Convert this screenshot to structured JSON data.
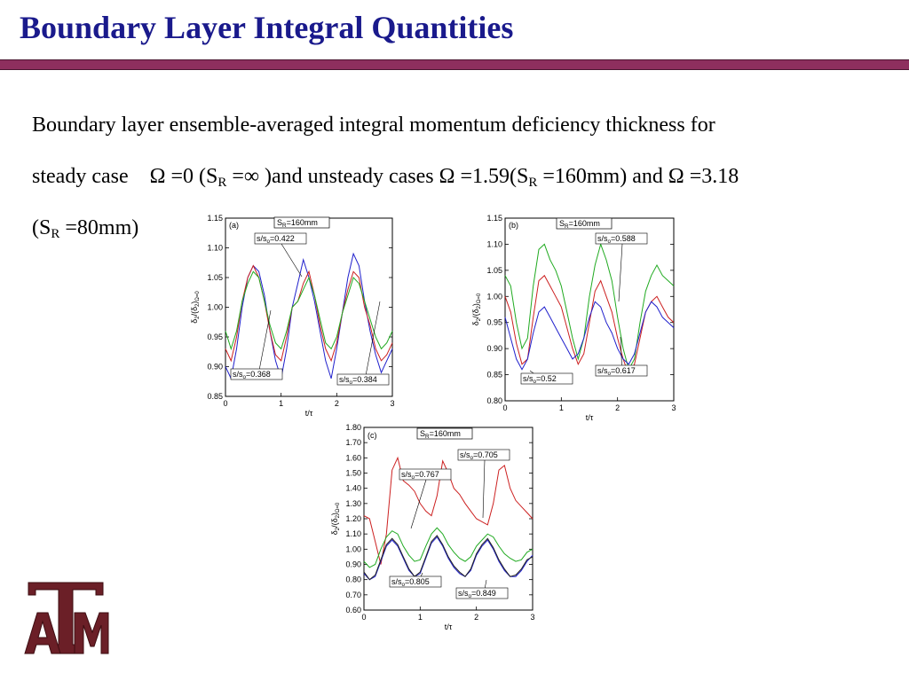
{
  "slide": {
    "title": "Boundary Layer Integral Quantities",
    "body": {
      "line1": "Boundary layer ensemble-averaged integral momentum deficiency thickness for",
      "line2a": "steady case",
      "omega": "Ω",
      "eq0": " =0 (S",
      "sub_R": "R",
      "eqinf": " =∞ )and unsteady cases ",
      "eq159": " =1.59(S",
      "eq160": " =160mm) and ",
      "eq318": " =3.18",
      "line3a": "(S",
      "eq80": " =80mm)"
    }
  },
  "chart_data": [
    {
      "type": "line",
      "panel_label": "(a)",
      "legend_box": "S_R=160mm",
      "legend_box_parts": {
        "main": "S",
        "sub": "R",
        "rest": "=160mm"
      },
      "xlabel": "t/τ",
      "ylabel_parts": {
        "a": "δ",
        "b": "2",
        "c": "/(δ",
        "d": "2",
        "e": ")",
        "f": "Ω=0"
      },
      "xlim": [
        0,
        3
      ],
      "ylim": [
        0.85,
        1.15
      ],
      "xticks": [
        0,
        1,
        2,
        3
      ],
      "yticks": [
        0.85,
        0.9,
        0.95,
        1.0,
        1.05,
        1.1,
        1.15
      ],
      "ytick_labels": [
        "0.85",
        "0.90",
        "0.95",
        "1.00",
        "1.05",
        "1.10",
        "1.15"
      ],
      "annotations": [
        {
          "text_main": "s/s",
          "text_sub": "o",
          "text_rest": "=0.422"
        },
        {
          "text_main": "s/s",
          "text_sub": "o",
          "text_rest": "=0.368"
        },
        {
          "text_main": "s/s",
          "text_sub": "o",
          "text_rest": "=0.384"
        }
      ],
      "series": [
        {
          "color": "#2020cc",
          "x": [
            0,
            0.1,
            0.2,
            0.3,
            0.4,
            0.5,
            0.6,
            0.7,
            0.8,
            0.9,
            1.0,
            1.1,
            1.2,
            1.3,
            1.4,
            1.5,
            1.6,
            1.7,
            1.8,
            1.9,
            2.0,
            2.1,
            2.2,
            2.3,
            2.4,
            2.5,
            2.6,
            2.7,
            2.8,
            2.9,
            3.0
          ],
          "y": [
            0.9,
            0.88,
            0.93,
            1.0,
            1.05,
            1.07,
            1.06,
            1.02,
            0.96,
            0.91,
            0.88,
            0.93,
            1.0,
            1.04,
            1.08,
            1.05,
            1.01,
            0.96,
            0.91,
            0.88,
            0.93,
            0.99,
            1.05,
            1.09,
            1.07,
            1.01,
            0.96,
            0.92,
            0.89,
            0.91,
            0.93
          ]
        },
        {
          "color": "#cc2020",
          "x": [
            0,
            0.1,
            0.2,
            0.3,
            0.4,
            0.5,
            0.6,
            0.7,
            0.8,
            0.9,
            1.0,
            1.1,
            1.2,
            1.3,
            1.4,
            1.5,
            1.6,
            1.7,
            1.8,
            1.9,
            2.0,
            2.1,
            2.2,
            2.3,
            2.4,
            2.5,
            2.6,
            2.7,
            2.8,
            2.9,
            3.0
          ],
          "y": [
            0.93,
            0.91,
            0.95,
            1.01,
            1.05,
            1.07,
            1.05,
            1.01,
            0.96,
            0.92,
            0.91,
            0.95,
            1.0,
            1.01,
            1.04,
            1.06,
            1.02,
            0.97,
            0.93,
            0.91,
            0.94,
            0.99,
            1.03,
            1.06,
            1.05,
            1.0,
            0.97,
            0.93,
            0.91,
            0.92,
            0.94
          ]
        },
        {
          "color": "#20aa20",
          "x": [
            0,
            0.1,
            0.2,
            0.3,
            0.4,
            0.5,
            0.6,
            0.7,
            0.8,
            0.9,
            1.0,
            1.1,
            1.2,
            1.3,
            1.4,
            1.5,
            1.6,
            1.7,
            1.8,
            1.9,
            2.0,
            2.1,
            2.2,
            2.3,
            2.4,
            2.5,
            2.6,
            2.7,
            2.8,
            2.9,
            3.0
          ],
          "y": [
            0.96,
            0.93,
            0.96,
            1.01,
            1.04,
            1.06,
            1.05,
            1.01,
            0.97,
            0.94,
            0.93,
            0.96,
            1.0,
            1.01,
            1.03,
            1.05,
            1.02,
            0.98,
            0.94,
            0.93,
            0.95,
            0.99,
            1.02,
            1.05,
            1.04,
            1.01,
            0.98,
            0.95,
            0.93,
            0.94,
            0.96
          ]
        }
      ]
    },
    {
      "type": "line",
      "panel_label": "(b)",
      "legend_box_parts": {
        "main": "S",
        "sub": "R",
        "rest": "=160mm"
      },
      "xlabel": "t/τ",
      "ylabel_parts": {
        "a": "δ",
        "b": "2",
        "c": "/(δ",
        "d": "2",
        "e": ")",
        "f": "Ω=0"
      },
      "xlim": [
        0,
        3
      ],
      "ylim": [
        0.8,
        1.15
      ],
      "xticks": [
        0,
        1,
        2,
        3
      ],
      "yticks": [
        0.8,
        0.85,
        0.9,
        0.95,
        1.0,
        1.05,
        1.1,
        1.15
      ],
      "ytick_labels": [
        "0.80",
        "0.85",
        "0.90",
        "0.95",
        "1.00",
        "1.05",
        "1.10",
        "1.15"
      ],
      "annotations": [
        {
          "text_main": "s/s",
          "text_sub": "o",
          "text_rest": "=0.588"
        },
        {
          "text_main": "s/s",
          "text_sub": "o",
          "text_rest": "=0.52"
        },
        {
          "text_main": "s/s",
          "text_sub": "o",
          "text_rest": "=0.617"
        }
      ],
      "series": [
        {
          "color": "#20aa20",
          "x": [
            0,
            0.1,
            0.2,
            0.3,
            0.4,
            0.5,
            0.6,
            0.7,
            0.8,
            0.9,
            1.0,
            1.1,
            1.2,
            1.3,
            1.4,
            1.5,
            1.6,
            1.7,
            1.8,
            1.9,
            2.0,
            2.1,
            2.2,
            2.3,
            2.4,
            2.5,
            2.6,
            2.7,
            2.8,
            2.9,
            3.0
          ],
          "y": [
            1.04,
            1.02,
            0.95,
            0.9,
            0.92,
            1.02,
            1.09,
            1.1,
            1.07,
            1.05,
            1.02,
            0.97,
            0.92,
            0.88,
            0.92,
            1.0,
            1.06,
            1.1,
            1.07,
            1.03,
            0.96,
            0.9,
            0.86,
            0.88,
            0.95,
            1.01,
            1.04,
            1.06,
            1.04,
            1.03,
            1.02
          ]
        },
        {
          "color": "#cc2020",
          "x": [
            0,
            0.1,
            0.2,
            0.3,
            0.4,
            0.5,
            0.6,
            0.7,
            0.8,
            0.9,
            1.0,
            1.1,
            1.2,
            1.3,
            1.4,
            1.5,
            1.6,
            1.7,
            1.8,
            1.9,
            2.0,
            2.1,
            2.2,
            2.3,
            2.4,
            2.5,
            2.6,
            2.7,
            2.8,
            2.9,
            3.0
          ],
          "y": [
            1.0,
            0.97,
            0.91,
            0.87,
            0.88,
            0.96,
            1.03,
            1.04,
            1.02,
            1.0,
            0.98,
            0.94,
            0.9,
            0.87,
            0.89,
            0.95,
            1.01,
            1.03,
            1.0,
            0.97,
            0.92,
            0.88,
            0.85,
            0.87,
            0.92,
            0.97,
            0.99,
            1.0,
            0.98,
            0.96,
            0.95
          ]
        },
        {
          "color": "#2020cc",
          "x": [
            0,
            0.1,
            0.2,
            0.3,
            0.4,
            0.5,
            0.6,
            0.7,
            0.8,
            0.9,
            1.0,
            1.1,
            1.2,
            1.3,
            1.4,
            1.5,
            1.6,
            1.7,
            1.8,
            1.9,
            2.0,
            2.1,
            2.2,
            2.3,
            2.4,
            2.5,
            2.6,
            2.7,
            2.8,
            2.9,
            3.0
          ],
          "y": [
            0.96,
            0.92,
            0.88,
            0.86,
            0.88,
            0.93,
            0.97,
            0.98,
            0.96,
            0.94,
            0.92,
            0.9,
            0.88,
            0.89,
            0.92,
            0.96,
            0.99,
            0.98,
            0.95,
            0.93,
            0.9,
            0.88,
            0.87,
            0.89,
            0.93,
            0.97,
            0.99,
            0.98,
            0.96,
            0.95,
            0.94
          ]
        }
      ]
    },
    {
      "type": "line",
      "panel_label": "(c)",
      "legend_box_parts": {
        "main": "S",
        "sub": "R",
        "rest": "=160mm"
      },
      "xlabel": "t/τ",
      "ylabel_parts": {
        "a": "δ",
        "b": "2",
        "c": "/(δ",
        "d": "2",
        "e": ")",
        "f": "Ω=0"
      },
      "xlim": [
        0,
        3
      ],
      "ylim": [
        0.6,
        1.8
      ],
      "xticks": [
        0,
        1,
        2,
        3
      ],
      "yticks": [
        0.6,
        0.7,
        0.8,
        0.9,
        1.0,
        1.1,
        1.2,
        1.3,
        1.4,
        1.5,
        1.6,
        1.7,
        1.8
      ],
      "ytick_labels": [
        "0.60",
        "0.70",
        "0.80",
        "0.90",
        "1.00",
        "1.10",
        "1.20",
        "1.30",
        "1.40",
        "1.50",
        "1.60",
        "1.70",
        "1.80"
      ],
      "annotations": [
        {
          "text_main": "s/s",
          "text_sub": "o",
          "text_rest": "=0.705"
        },
        {
          "text_main": "s/s",
          "text_sub": "o",
          "text_rest": "=0.767"
        },
        {
          "text_main": "s/s",
          "text_sub": "o",
          "text_rest": "=0.805"
        },
        {
          "text_main": "s/s",
          "text_sub": "o",
          "text_rest": "=0.849"
        }
      ],
      "series": [
        {
          "color": "#cc2020",
          "x": [
            0,
            0.1,
            0.2,
            0.3,
            0.4,
            0.5,
            0.6,
            0.7,
            0.8,
            0.9,
            1.0,
            1.1,
            1.2,
            1.3,
            1.4,
            1.5,
            1.6,
            1.7,
            1.8,
            1.9,
            2.0,
            2.1,
            2.2,
            2.3,
            2.4,
            2.5,
            2.6,
            2.7,
            2.8,
            2.9,
            3.0
          ],
          "y": [
            1.22,
            1.2,
            1.05,
            0.9,
            1.1,
            1.52,
            1.6,
            1.45,
            1.42,
            1.38,
            1.3,
            1.25,
            1.22,
            1.35,
            1.58,
            1.5,
            1.4,
            1.36,
            1.3,
            1.25,
            1.2,
            1.18,
            1.16,
            1.3,
            1.52,
            1.55,
            1.4,
            1.32,
            1.28,
            1.24,
            1.2
          ]
        },
        {
          "color": "#20aa20",
          "x": [
            0,
            0.1,
            0.2,
            0.3,
            0.4,
            0.5,
            0.6,
            0.7,
            0.8,
            0.9,
            1.0,
            1.1,
            1.2,
            1.3,
            1.4,
            1.5,
            1.6,
            1.7,
            1.8,
            1.9,
            2.0,
            2.1,
            2.2,
            2.3,
            2.4,
            2.5,
            2.6,
            2.7,
            2.8,
            2.9,
            3.0
          ],
          "y": [
            0.92,
            0.88,
            0.9,
            1.0,
            1.08,
            1.12,
            1.1,
            1.02,
            0.96,
            0.92,
            0.93,
            1.02,
            1.1,
            1.14,
            1.1,
            1.03,
            0.98,
            0.94,
            0.92,
            0.95,
            1.02,
            1.06,
            1.1,
            1.08,
            1.02,
            0.97,
            0.94,
            0.92,
            0.93,
            0.98,
            1.0
          ]
        },
        {
          "color": "#2020cc",
          "x": [
            0,
            0.1,
            0.2,
            0.3,
            0.4,
            0.5,
            0.6,
            0.7,
            0.8,
            0.9,
            1.0,
            1.1,
            1.2,
            1.3,
            1.4,
            1.5,
            1.6,
            1.7,
            1.8,
            1.9,
            2.0,
            2.1,
            2.2,
            2.3,
            2.4,
            2.5,
            2.6,
            2.7,
            2.8,
            2.9,
            3.0
          ],
          "y": [
            0.84,
            0.8,
            0.82,
            0.92,
            1.02,
            1.06,
            1.02,
            0.94,
            0.86,
            0.82,
            0.84,
            0.94,
            1.04,
            1.08,
            1.02,
            0.94,
            0.88,
            0.84,
            0.82,
            0.86,
            0.96,
            1.02,
            1.06,
            1.0,
            0.92,
            0.86,
            0.82,
            0.82,
            0.86,
            0.92,
            0.96
          ]
        },
        {
          "color": "#222222",
          "x": [
            0,
            0.1,
            0.2,
            0.3,
            0.4,
            0.5,
            0.6,
            0.7,
            0.8,
            0.9,
            1.0,
            1.1,
            1.2,
            1.3,
            1.4,
            1.5,
            1.6,
            1.7,
            1.8,
            1.9,
            2.0,
            2.1,
            2.2,
            2.3,
            2.4,
            2.5,
            2.6,
            2.7,
            2.8,
            2.9,
            3.0
          ],
          "y": [
            0.85,
            0.8,
            0.83,
            0.93,
            1.03,
            1.07,
            1.03,
            0.95,
            0.87,
            0.82,
            0.85,
            0.95,
            1.05,
            1.09,
            1.03,
            0.95,
            0.89,
            0.85,
            0.82,
            0.87,
            0.97,
            1.03,
            1.07,
            1.01,
            0.93,
            0.87,
            0.82,
            0.83,
            0.87,
            0.93,
            0.95
          ]
        }
      ]
    }
  ]
}
